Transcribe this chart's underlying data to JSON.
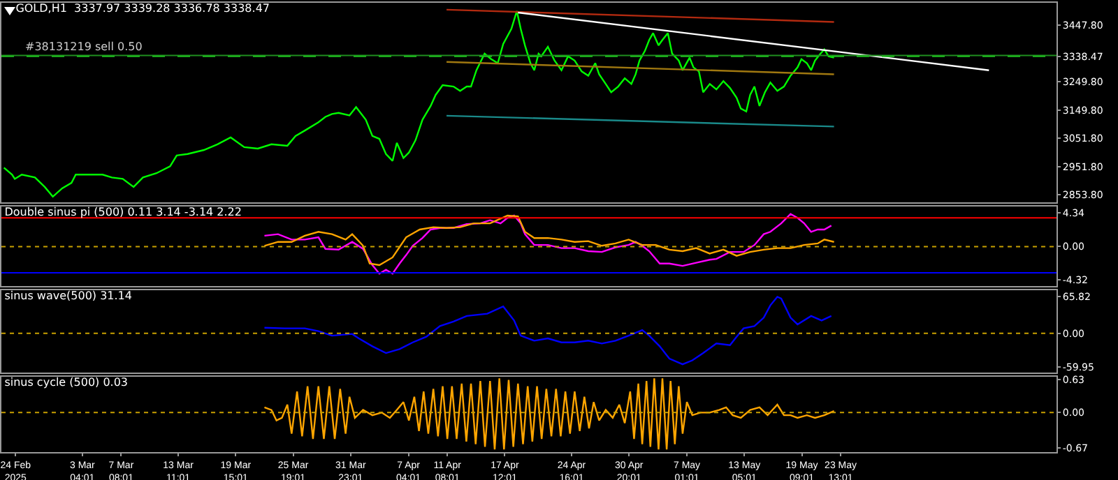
{
  "chart_data": [
    {
      "type": "line",
      "title": "GOLD,H1  3337.97 3339.28 3336.78 3338.47",
      "xlim": [
        "2025-02-22T11:30",
        "2025-06-15T17:00"
      ],
      "ylim": [
        2828,
        3526
      ],
      "tick_labels": "y",
      "grid": false,
      "marker": "none",
      "yticks": [
        {
          "value": 3447.8,
          "label": "3447.80"
        },
        {
          "value": 3338.47,
          "label": "3338.47"
        },
        {
          "value": 3249.8,
          "label": "3249.80"
        },
        {
          "value": 3149.8,
          "label": "3149.80"
        },
        {
          "value": 3051.8,
          "label": "3051.80"
        },
        {
          "value": 2951.8,
          "label": "2951.80"
        },
        {
          "value": 2853.8,
          "label": "2853.80"
        }
      ],
      "ref_lines": [
        {
          "axis": "y",
          "value": 3342,
          "label": "#38131219 sell 0.50",
          "color": "#1f8f1f",
          "line_style": "solid"
        },
        {
          "axis": "y",
          "value": 3338.47,
          "color": "#1fbf1f",
          "line_style": "dashed"
        }
      ],
      "series": [
        {
          "color": "#00ff00",
          "x": [
            "2025-02-22T18:00",
            "2025-02-23T15:00",
            "2025-02-23T22:00",
            "2025-02-24T16:00",
            "2025-02-26T02:00",
            "2025-02-27T03:00",
            "2025-02-28T00:00",
            "2025-03-01T00:00",
            "2025-03-02T00:00",
            "2025-03-02T11:00",
            "2025-03-03T21:00",
            "2025-03-05T08:00",
            "2025-03-06T08:00",
            "2025-03-07T12:00",
            "2025-03-08T16:00",
            "2025-03-09T16:00",
            "2025-03-11T03:00",
            "2025-03-12T14:00",
            "2025-03-13T07:00",
            "2025-03-14T11:00",
            "2025-03-16T05:00",
            "2025-03-17T16:00",
            "2025-03-19T02:00",
            "2025-03-20T13:00",
            "2025-03-22T00:00",
            "2025-03-23T11:00",
            "2025-03-25T04:00",
            "2025-03-26T01:00",
            "2025-03-27T01:00",
            "2025-03-28T12:00",
            "2025-03-29T06:00",
            "2025-03-29T23:00",
            "2025-03-30T16:00",
            "2025-03-31T20:00",
            "2025-04-01T13:00",
            "2025-04-02T14:00",
            "2025-04-03T07:00",
            "2025-04-04T01:00",
            "2025-04-04T18:00",
            "2025-04-05T11:00",
            "2025-04-05T22:00",
            "2025-04-06T15:00",
            "2025-04-07T05:00",
            "2025-04-07T22:00",
            "2025-04-08T16:00",
            "2025-04-09T13:00",
            "2025-04-10T02:00",
            "2025-04-10T20:00",
            "2025-04-12T00:00",
            "2025-04-12T17:00",
            "2025-04-13T10:00",
            "2025-04-13T21:00",
            "2025-04-14T11:00",
            "2025-04-15T08:00",
            "2025-04-16T01:00",
            "2025-04-16T18:00",
            "2025-04-17T08:00",
            "2025-04-18T05:00",
            "2025-04-18T19:00",
            "2025-04-19T05:00",
            "2025-04-19T16:00",
            "2025-04-20T06:00",
            "2025-04-20T16:00",
            "2025-04-21T03:00",
            "2025-04-21T10:00",
            "2025-04-22T03:00",
            "2025-04-22T20:00",
            "2025-04-23T14:00",
            "2025-04-24T07:00",
            "2025-04-25T00:00",
            "2025-04-25T18:00",
            "2025-04-26T11:00",
            "2025-04-27T05:00",
            "2025-04-27T15:00",
            "2025-04-28T08:00",
            "2025-04-28T22:00",
            "2025-04-29T16:00",
            "2025-04-30T09:00",
            "2025-05-01T02:00",
            "2025-05-01T13:00",
            "2025-05-01T23:00",
            "2025-05-02T13:00",
            "2025-05-03T00:00",
            "2025-05-03T10:00",
            "2025-05-04T00:00",
            "2025-05-04T10:00",
            "2025-05-05T00:00",
            "2025-05-05T11:00",
            "2025-05-06T04:00",
            "2025-05-06T14:00",
            "2025-05-07T08:00",
            "2025-05-07T18:00",
            "2025-05-08T08:00",
            "2025-05-08T19:00",
            "2025-05-09T12:00",
            "2025-05-10T05:00",
            "2025-05-10T23:00",
            "2025-05-11T16:00",
            "2025-05-12T09:00",
            "2025-05-12T20:00",
            "2025-05-13T10:00",
            "2025-05-13T20:00",
            "2025-05-14T07:00",
            "2025-05-14T20:00",
            "2025-05-15T10:00",
            "2025-05-16T00:00",
            "2025-05-16T18:00",
            "2025-05-17T11:00",
            "2025-05-18T04:00",
            "2025-05-18T22:00",
            "2025-05-19T08:00",
            "2025-05-19T22:00",
            "2025-05-20T09:00",
            "2025-05-20T19:00",
            "2025-05-21T09:00",
            "2025-05-21T19:00",
            "2025-05-22T06:00",
            "2025-05-22T20:00"
          ],
          "values": [
            2949,
            2925,
            2910,
            2925,
            2915,
            2882,
            2848,
            2877,
            2896,
            2925,
            2925,
            2925,
            2915,
            2910,
            2882,
            2915,
            2930,
            2954,
            2992,
            2997,
            3011,
            3031,
            3055,
            3021,
            3016,
            3031,
            3026,
            3060,
            3079,
            3108,
            3127,
            3137,
            3141,
            3132,
            3161,
            3117,
            3060,
            3050,
            2997,
            2973,
            3036,
            2983,
            3002,
            3045,
            3117,
            3165,
            3204,
            3238,
            3233,
            3218,
            3233,
            3233,
            3290,
            3348,
            3329,
            3315,
            3382,
            3435,
            3497,
            3435,
            3377,
            3315,
            3290,
            3348,
            3339,
            3372,
            3324,
            3290,
            3339,
            3324,
            3286,
            3271,
            3315,
            3276,
            3242,
            3213,
            3233,
            3262,
            3242,
            3276,
            3324,
            3358,
            3396,
            3420,
            3377,
            3396,
            3420,
            3348,
            3324,
            3290,
            3334,
            3300,
            3286,
            3213,
            3242,
            3223,
            3252,
            3228,
            3194,
            3156,
            3146,
            3204,
            3233,
            3165,
            3213,
            3247,
            3218,
            3233,
            3271,
            3300,
            3329,
            3315,
            3290,
            3324,
            3348,
            3363,
            3339,
            3334
          ]
        },
        {
          "color": "#b22a10",
          "x": [
            "2025-04-11T06:00",
            "2025-05-22T20:00"
          ],
          "values": [
            3502,
            3459
          ]
        },
        {
          "color": "#a07810",
          "x": [
            "2025-04-11T06:00",
            "2025-05-22T20:00"
          ],
          "values": [
            3319,
            3276
          ]
        },
        {
          "color": "#1a8a8a",
          "x": [
            "2025-04-11T06:00",
            "2025-05-22T20:00"
          ],
          "values": [
            3131,
            3093
          ]
        },
        {
          "color": "#ffffff",
          "x": [
            "2025-04-18T22:00",
            "2025-06-08T11:00"
          ],
          "values": [
            3492,
            3290
          ]
        }
      ]
    },
    {
      "type": "line",
      "title": "Double sinus pi (500) 0.11 3.14 -3.14 2.22",
      "xlim": [
        "2025-02-22T11:30",
        "2025-06-15T17:00"
      ],
      "ylim": [
        -5.1,
        5.17
      ],
      "tick_labels": "y",
      "grid": false,
      "marker": "none",
      "yticks": [
        4.34,
        {
          "value": 0,
          "label": "0.00"
        },
        -4.32
      ],
      "ref_lines": [
        {
          "axis": "y",
          "value": 3.7,
          "color": "#ff0000",
          "line_style": "solid"
        },
        {
          "axis": "y",
          "value": -3.4,
          "color": "#0000ff",
          "line_style": "solid"
        },
        {
          "axis": "y",
          "value": 0,
          "color": "#c8a000",
          "line_style": "dotted"
        }
      ],
      "series": [
        {
          "color": "#ff00ff",
          "x": [
            "2025-03-22T17:00",
            "2025-03-24T04:00",
            "2025-03-25T15:00",
            "2025-03-27T01:00",
            "2025-03-28T12:00",
            "2025-03-29T06:00",
            "2025-03-30T16:00",
            "2025-04-01T03:00",
            "2025-04-02T07:00",
            "2025-04-03T07:00",
            "2025-04-04T01:00",
            "2025-04-04T18:00",
            "2025-04-05T11:00",
            "2025-04-06T05:00",
            "2025-04-06T22:00",
            "2025-04-07T15:00",
            "2025-04-08T16:00",
            "2025-04-09T13:00",
            "2025-04-10T13:00",
            "2025-04-12T00:00",
            "2025-04-13T10:00",
            "2025-04-14T21:00",
            "2025-04-15T22:00",
            "2025-04-17T01:00",
            "2025-04-17T19:00",
            "2025-04-18T12:00",
            "2025-04-19T05:00",
            "2025-04-19T16:00",
            "2025-04-20T16:00",
            "2025-04-22T03:00",
            "2025-04-23T14:00",
            "2025-04-25T00:00",
            "2025-04-26T11:00",
            "2025-04-27T22:00",
            "2025-04-29T09:00",
            "2025-04-30T19:00",
            "2025-05-01T13:00",
            "2025-05-02T06:00",
            "2025-05-03T00:00",
            "2025-05-04T03:00",
            "2025-05-05T04:00",
            "2025-05-06T14:00",
            "2025-05-08T01:00",
            "2025-05-09T12:00",
            "2025-05-10T05:00",
            "2025-05-11T16:00",
            "2025-05-13T03:00",
            "2025-05-14T07:00",
            "2025-05-15T07:00",
            "2025-05-16T00:00",
            "2025-05-17T04:00",
            "2025-05-18T04:00",
            "2025-05-18T22:00",
            "2025-05-19T15:00",
            "2025-05-20T09:00",
            "2025-05-21T02:00",
            "2025-05-21T19:00",
            "2025-05-22T13:00"
          ],
          "values": [
            1.4,
            1.6,
            0.9,
            0.9,
            1.2,
            -0.3,
            -0.4,
            0.6,
            -0.3,
            -2.4,
            -3.5,
            -3.0,
            -3.5,
            -2.2,
            -1.1,
            0.1,
            1.1,
            2.2,
            2.4,
            2.4,
            2.9,
            3.0,
            3.4,
            3.0,
            3.7,
            4.0,
            3.0,
            1.6,
            0.2,
            0.2,
            -0.2,
            -0.2,
            -0.6,
            -0.7,
            -0.1,
            0.2,
            0.6,
            0.1,
            -0.6,
            -2.2,
            -2.2,
            -2.5,
            -2.1,
            -1.7,
            -1.6,
            -0.7,
            -0.7,
            0.2,
            1.6,
            1.9,
            3.0,
            4.2,
            3.7,
            3.0,
            1.9,
            2.2,
            2.2,
            2.7
          ]
        },
        {
          "color": "#ffa500",
          "x": [
            "2025-03-22T17:00",
            "2025-03-24T04:00",
            "2025-03-25T15:00",
            "2025-03-27T01:00",
            "2025-03-28T12:00",
            "2025-03-29T23:00",
            "2025-03-31T10:00",
            "2025-04-01T03:00",
            "2025-04-02T07:00",
            "2025-04-03T00:00",
            "2025-04-04T01:00",
            "2025-04-05T11:00",
            "2025-04-06T22:00",
            "2025-04-08T09:00",
            "2025-04-09T20:00",
            "2025-04-11T06:00",
            "2025-04-12T17:00",
            "2025-04-14T04:00",
            "2025-04-15T22:00",
            "2025-04-17T19:00",
            "2025-04-18T22:00",
            "2025-04-19T16:00",
            "2025-04-20T16:00",
            "2025-04-22T03:00",
            "2025-04-23T14:00",
            "2025-04-25T00:00",
            "2025-04-26T11:00",
            "2025-04-27T22:00",
            "2025-04-29T09:00",
            "2025-04-30T19:00",
            "2025-05-02T06:00",
            "2025-05-03T17:00",
            "2025-05-05T04:00",
            "2025-05-06T14:00",
            "2025-05-08T01:00",
            "2025-05-09T12:00",
            "2025-05-10T23:00",
            "2025-05-12T09:00",
            "2025-05-13T20:00",
            "2025-05-15T07:00",
            "2025-05-16T18:00",
            "2025-05-18T04:00",
            "2025-05-19T15:00",
            "2025-05-21T02:00",
            "2025-05-21T19:00",
            "2025-05-22T20:00"
          ],
          "values": [
            0.1,
            0.6,
            0.6,
            1.4,
            1.9,
            1.6,
            0.9,
            1.6,
            0.1,
            -2.2,
            -2.4,
            -1.4,
            1.2,
            2.2,
            2.5,
            2.4,
            2.5,
            3.0,
            3.0,
            4.0,
            3.9,
            1.9,
            1.1,
            1.1,
            0.9,
            0.6,
            0.7,
            0.1,
            0.4,
            0.9,
            0.2,
            0.2,
            -0.4,
            -0.6,
            -0.2,
            -0.9,
            -0.4,
            -1.2,
            -0.7,
            -0.4,
            -0.2,
            -0.2,
            0.2,
            0.4,
            0.9,
            0.6
          ]
        }
      ]
    },
    {
      "type": "line",
      "title": "sinus wave(500) 31.14",
      "xlim": [
        "2025-02-22T11:30",
        "2025-06-15T17:00"
      ],
      "ylim": [
        -69.7,
        76.8
      ],
      "tick_labels": "y",
      "grid": false,
      "marker": "none",
      "yticks": [
        65.82,
        {
          "value": 0,
          "label": "0.00"
        },
        -59.95
      ],
      "ref_lines": [
        {
          "axis": "y",
          "value": 0,
          "color": "#c8a000",
          "line_style": "dotted"
        }
      ],
      "series": [
        {
          "color": "#0000ff",
          "x": [
            "2025-03-22T17:00",
            "2025-03-24T21:00",
            "2025-03-27T01:00",
            "2025-03-28T12:00",
            "2025-03-29T23:00",
            "2025-04-01T03:00",
            "2025-04-01T20:00",
            "2025-04-03T07:00",
            "2025-04-04T18:00",
            "2025-04-06T05:00",
            "2025-04-07T15:00",
            "2025-04-09T02:00",
            "2025-04-10T13:00",
            "2025-04-12T00:00",
            "2025-04-13T10:00",
            "2025-04-15T15:00",
            "2025-04-17T08:00",
            "2025-04-18T12:00",
            "2025-04-19T05:00",
            "2025-04-20T16:00",
            "2025-04-22T03:00",
            "2025-04-23T14:00",
            "2025-04-25T00:00",
            "2025-04-26T11:00",
            "2025-04-27T22:00",
            "2025-04-29T09:00",
            "2025-04-30T19:00",
            "2025-05-02T06:00",
            "2025-05-03T00:00",
            "2025-05-04T03:00",
            "2025-05-05T04:00",
            "2025-05-06T14:00",
            "2025-05-07T15:00",
            "2025-05-08T19:00",
            "2025-05-10T05:00",
            "2025-05-11T16:00",
            "2025-05-12T09:00",
            "2025-05-13T03:00",
            "2025-05-14T07:00",
            "2025-05-15T07:00",
            "2025-05-16T00:00",
            "2025-05-16T18:00",
            "2025-05-17T04:00",
            "2025-05-18T04:00",
            "2025-05-18T22:00",
            "2025-05-20T09:00",
            "2025-05-21T12:00",
            "2025-05-22T13:00"
          ],
          "values": [
            10,
            9,
            9,
            4,
            -4,
            -1,
            -9,
            -23,
            -35,
            -28,
            -16,
            -6,
            13,
            21,
            31,
            35,
            48,
            23,
            -4,
            -13,
            -9,
            -16,
            -16,
            -13,
            -18,
            -13,
            -4,
            6,
            -4,
            -23,
            -45,
            -55,
            -48,
            -35,
            -18,
            -21,
            -6,
            9,
            13,
            28,
            50,
            65,
            62,
            28,
            16,
            31,
            23,
            31
          ]
        }
      ]
    },
    {
      "type": "line",
      "title": "sinus cycle (500) 0.03",
      "xlim": [
        "2025-02-22T11:30",
        "2025-06-15T17:00"
      ],
      "ylim": [
        -0.75,
        0.68
      ],
      "grid": false,
      "marker": "none",
      "yticks": [
        0.63,
        {
          "value": 0,
          "label": "0.00"
        },
        -0.67
      ],
      "xticks": [
        {
          "value": "2025-02-24",
          "label": "24 Feb 2025"
        },
        {
          "value": "2025-03-03T04:01",
          "label": "3 Mar 04:01"
        },
        {
          "value": "2025-03-07T08:01",
          "label": "7 Mar 08:01"
        },
        {
          "value": "2025-03-13T11:01",
          "label": "13 Mar 11:01"
        },
        {
          "value": "2025-03-19T15:01",
          "label": "19 Mar 15:01"
        },
        {
          "value": "2025-03-25T19:01",
          "label": "25 Mar 19:01"
        },
        {
          "value": "2025-03-31T23:01",
          "label": "31 Mar 23:01"
        },
        {
          "value": "2025-04-07T04:01",
          "label": "7 Apr 04:01"
        },
        {
          "value": "2025-04-11T08:01",
          "label": "11 Apr 08:01"
        },
        {
          "value": "2025-04-17T12:01",
          "label": "17 Apr 12:01"
        },
        {
          "value": "2025-04-24T16:01",
          "label": "24 Apr 16:01"
        },
        {
          "value": "2025-04-30T20:01",
          "label": "30 Apr 20:01"
        },
        {
          "value": "2025-05-07T01:01",
          "label": "7 May 01:01"
        },
        {
          "value": "2025-05-13T05:01",
          "label": "13 May 05:01"
        },
        {
          "value": "2025-05-19T09:01",
          "label": "19 May 09:01"
        },
        {
          "value": "2025-05-23T13:01",
          "label": "23 May 13:01"
        }
      ],
      "ref_lines": [
        {
          "axis": "y",
          "value": 0,
          "color": "#c8a000",
          "line_style": "dotted"
        }
      ],
      "series": [
        {
          "color": "#ffa500",
          "x": [
            "2025-03-22T17:00",
            "2025-03-23T11:00",
            "2025-03-24T00:00",
            "2025-03-24T14:00",
            "2025-03-25T04:00",
            "2025-03-25T15:00",
            "2025-03-26T05:00",
            "2025-03-26T18:00",
            "2025-03-27T08:00",
            "2025-03-27T22:00",
            "2025-03-28T12:00",
            "2025-03-29T02:00",
            "2025-03-29T16:00",
            "2025-03-30T06:00",
            "2025-03-30T20:00",
            "2025-03-31T10:00",
            "2025-03-31T20:00",
            "2025-04-01T10:00",
            "2025-04-02T07:00",
            "2025-04-03T07:00",
            "2025-04-04T07:00",
            "2025-04-05T04:00",
            "2025-04-05T22:00",
            "2025-04-06T15:00",
            "2025-04-07T05:00",
            "2025-04-07T19:00",
            "2025-04-08T07:00",
            "2025-04-08T19:00",
            "2025-04-09T07:00",
            "2025-04-09T20:00",
            "2025-04-10T08:00",
            "2025-04-10T20:00",
            "2025-04-11T08:00",
            "2025-04-11T20:00",
            "2025-04-12T08:00",
            "2025-04-12T21:00",
            "2025-04-13T09:00",
            "2025-04-13T21:00",
            "2025-04-14T09:00",
            "2025-04-14T21:00",
            "2025-04-15T09:00",
            "2025-04-15T22:00",
            "2025-04-16T10:00",
            "2025-04-16T22:00",
            "2025-04-17T10:00",
            "2025-04-17T22:00",
            "2025-04-18T10:00",
            "2025-04-18T22:00",
            "2025-04-19T11:00",
            "2025-04-19T23:00",
            "2025-04-20T11:00",
            "2025-04-20T23:00",
            "2025-04-21T11:00",
            "2025-04-21T23:00",
            "2025-04-22T12:00",
            "2025-04-23T00:00",
            "2025-04-23T12:00",
            "2025-04-24T00:00",
            "2025-04-24T12:00",
            "2025-04-25T00:00",
            "2025-04-25T13:00",
            "2025-04-26T01:00",
            "2025-04-26T13:00",
            "2025-04-27T01:00",
            "2025-04-27T15:00",
            "2025-04-28T08:00",
            "2025-04-29T02:00",
            "2025-04-29T19:00",
            "2025-04-30T09:00",
            "2025-04-30T23:00",
            "2025-05-01T09:00",
            "2025-05-01T20:00",
            "2025-05-02T06:00",
            "2025-05-02T17:00",
            "2025-05-03T03:00",
            "2025-05-03T13:00",
            "2025-05-04T00:00",
            "2025-05-04T10:00",
            "2025-05-04T21:00",
            "2025-05-05T07:00",
            "2025-05-05T18:00",
            "2025-05-06T04:00",
            "2025-05-06T14:00",
            "2025-05-07T01:00",
            "2025-05-07T15:00",
            "2025-05-08T12:00",
            "2025-05-09T12:00",
            "2025-05-10T12:00",
            "2025-05-11T06:00",
            "2025-05-11T23:00",
            "2025-05-12T20:00",
            "2025-05-13T20:00",
            "2025-05-14T20:00",
            "2025-05-15T17:00",
            "2025-05-16T18:00",
            "2025-05-17T11:00",
            "2025-05-18T04:00",
            "2025-05-18T22:00",
            "2025-05-19T22:00",
            "2025-05-20T19:00",
            "2025-05-21T19:00",
            "2025-05-22T20:00"
          ],
          "values": [
            0.1,
            0.05,
            -0.15,
            -0.1,
            0.15,
            -0.4,
            0.4,
            -0.45,
            0.5,
            -0.5,
            0.5,
            -0.5,
            0.5,
            -0.5,
            0.45,
            -0.4,
            0.3,
            -0.1,
            0.05,
            -0.05,
            0,
            -0.1,
            0.05,
            0.2,
            -0.15,
            0.3,
            -0.35,
            0.4,
            -0.4,
            0.45,
            -0.45,
            0.5,
            -0.5,
            0.5,
            -0.5,
            0.55,
            -0.55,
            0.55,
            -0.6,
            0.6,
            -0.65,
            0.6,
            -0.7,
            0.65,
            -0.7,
            0.62,
            -0.65,
            0.55,
            -0.6,
            0.5,
            -0.55,
            0.5,
            -0.5,
            0.45,
            -0.45,
            0.45,
            -0.45,
            0.4,
            -0.4,
            0.4,
            -0.35,
            0.3,
            -0.3,
            0.2,
            -0.15,
            0.05,
            -0.1,
            0.15,
            -0.2,
            0.4,
            -0.5,
            0.55,
            -0.6,
            0.6,
            -0.65,
            0.65,
            -0.7,
            0.65,
            -0.7,
            0.6,
            -0.6,
            0.5,
            -0.4,
            0.2,
            -0.05,
            0,
            0,
            0.05,
            0.1,
            -0.05,
            -0.1,
            0.05,
            0.1,
            -0.05,
            0.15,
            -0.05,
            -0.05,
            -0.1,
            -0.05,
            -0.1,
            -0.05,
            0.03
          ]
        }
      ]
    }
  ]
}
